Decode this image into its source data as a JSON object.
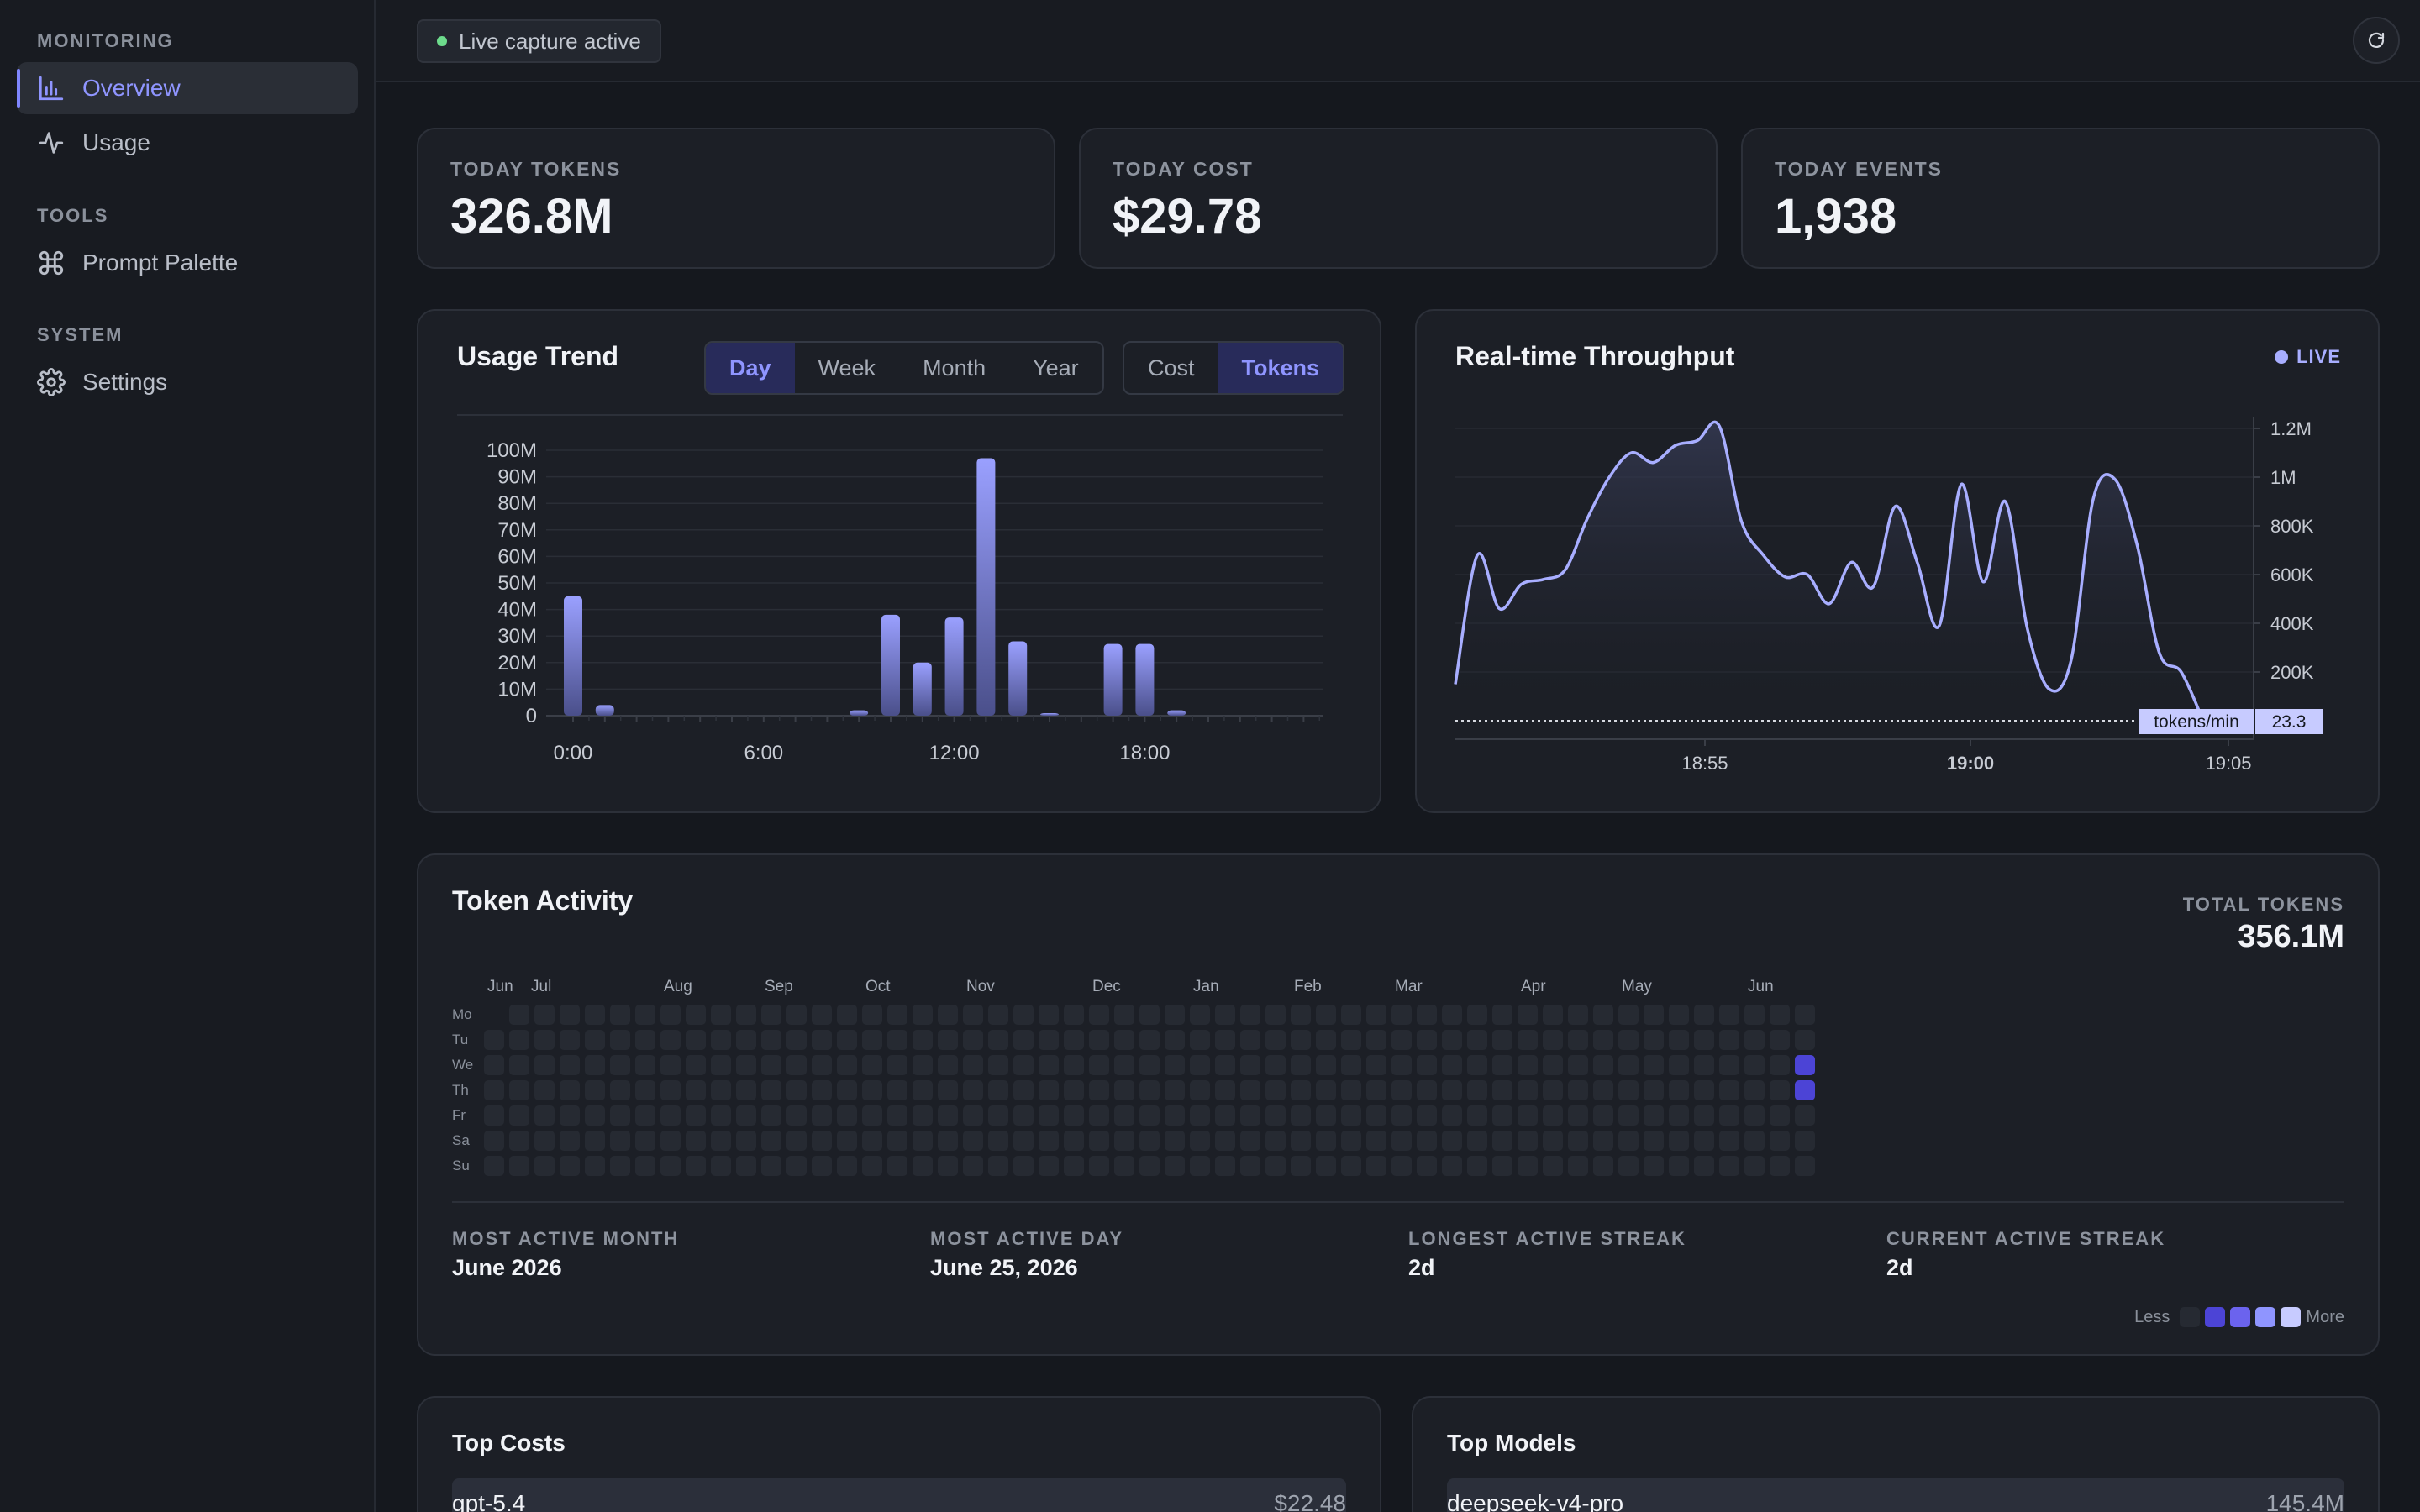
{
  "sidebar": {
    "sections": [
      {
        "label": "MONITORING",
        "items": [
          {
            "label": "Overview",
            "icon": "bar-chart-icon",
            "active": true
          },
          {
            "label": "Usage",
            "icon": "activity-icon"
          }
        ]
      },
      {
        "label": "TOOLS",
        "items": [
          {
            "label": "Prompt Palette",
            "icon": "command-icon"
          }
        ]
      },
      {
        "label": "SYSTEM",
        "items": [
          {
            "label": "Settings",
            "icon": "gear-icon"
          }
        ]
      }
    ]
  },
  "topbar": {
    "status": "Live capture active",
    "refresh_icon": "refresh-icon"
  },
  "kpis": [
    {
      "label": "TODAY TOKENS",
      "value": "326.8M"
    },
    {
      "label": "TODAY COST",
      "value": "$29.78"
    },
    {
      "label": "TODAY EVENTS",
      "value": "1,938"
    }
  ],
  "usage_trend": {
    "title": "Usage Trend",
    "ranges": [
      "Day",
      "Week",
      "Month",
      "Year"
    ],
    "active_range": "Day",
    "metrics": [
      "Cost",
      "Tokens"
    ],
    "active_metric": "Tokens"
  },
  "throughput": {
    "title": "Real-time Throughput",
    "badge": "LIVE",
    "current_label": "tokens/min",
    "current_value": "23.3"
  },
  "chart_data": [
    {
      "type": "bar",
      "title": "Usage Trend",
      "x": [
        "0:00",
        "1:00",
        "2:00",
        "3:00",
        "4:00",
        "5:00",
        "6:00",
        "7:00",
        "8:00",
        "9:00",
        "10:00",
        "11:00",
        "12:00",
        "13:00",
        "14:00",
        "15:00",
        "16:00",
        "17:00",
        "18:00",
        "19:00",
        "20:00",
        "21:00",
        "22:00",
        "23:00"
      ],
      "x_tick_labels": [
        "0:00",
        "6:00",
        "12:00",
        "18:00"
      ],
      "values": [
        45,
        4,
        0,
        0,
        0,
        0,
        0,
        0,
        0,
        2,
        38,
        20,
        37,
        97,
        28,
        0.5,
        0,
        27,
        27,
        2,
        0,
        0,
        0,
        0
      ],
      "unit": "M tokens",
      "ylim": [
        0,
        100
      ],
      "y_ticks": [
        "0",
        "10M",
        "20M",
        "30M",
        "40M",
        "50M",
        "60M",
        "70M",
        "80M",
        "90M",
        "100M"
      ],
      "grid": true
    },
    {
      "type": "area",
      "title": "Real-time Throughput",
      "x_tick_labels": [
        "18:55",
        "19:00",
        "19:05"
      ],
      "y_ticks": [
        "200K",
        "400K",
        "600K",
        "800K",
        "1M",
        "1.2M"
      ],
      "ylim": [
        0,
        1200000
      ],
      "values": [
        150000,
        680000,
        460000,
        560000,
        580000,
        620000,
        830000,
        1000000,
        1100000,
        1060000,
        1130000,
        1150000,
        1210000,
        820000,
        680000,
        590000,
        600000,
        480000,
        650000,
        550000,
        880000,
        650000,
        390000,
        970000,
        570000,
        900000,
        380000,
        130000,
        250000,
        910000,
        990000,
        720000,
        280000,
        200000,
        0
      ],
      "current": 23.3,
      "grid": true
    }
  ],
  "activity": {
    "title": "Token Activity",
    "total_label": "TOTAL TOKENS",
    "total_value": "356.1M",
    "months": [
      "Jun",
      "Jul",
      "Aug",
      "Sep",
      "Oct",
      "Nov",
      "Dec",
      "Jan",
      "Feb",
      "Mar",
      "Apr",
      "May",
      "Jun"
    ],
    "days": [
      "Mo",
      "Tu",
      "We",
      "Th",
      "Fr",
      "Sa",
      "Su"
    ],
    "weeks": 53,
    "active_cells": [
      {
        "week": 52,
        "day": 2,
        "level": 2
      },
      {
        "week": 52,
        "day": 3,
        "level": 2
      }
    ],
    "stats": [
      {
        "label": "MOST ACTIVE MONTH",
        "value": "June 2026"
      },
      {
        "label": "MOST ACTIVE DAY",
        "value": "June 25, 2026"
      },
      {
        "label": "LONGEST ACTIVE STREAK",
        "value": "2d"
      },
      {
        "label": "CURRENT ACTIVE STREAK",
        "value": "2d"
      }
    ],
    "legend_less": "Less",
    "legend_more": "More",
    "legend_colors": [
      "#262a32",
      "#4c44d6",
      "#6b63ee",
      "#8f95ff",
      "#c7cbff"
    ]
  },
  "top_costs": {
    "title": "Top Costs",
    "rows": [
      {
        "name": "gpt-5.4",
        "value": "$22.48"
      }
    ]
  },
  "top_models": {
    "title": "Top Models",
    "rows": [
      {
        "name": "deepseek-v4-pro",
        "value": "145.4M"
      }
    ]
  }
}
